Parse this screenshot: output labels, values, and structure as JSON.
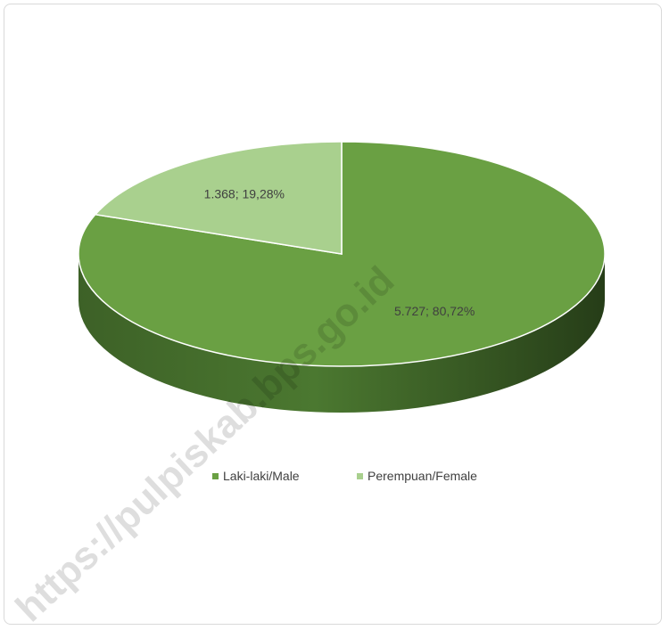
{
  "chart_data": {
    "type": "pie",
    "style": "3d",
    "slices": [
      {
        "name": "Laki-laki/Male",
        "value": 5727,
        "percent": 80.72,
        "label": "5.727; 80,72%",
        "color": "#6aa043"
      },
      {
        "name": "Perempuan/Female",
        "value": 1368,
        "percent": 19.28,
        "label": "1.368; 19,28%",
        "color": "#a9d08e"
      }
    ],
    "legend": {
      "position": "bottom"
    }
  },
  "legend": {
    "male_label": "Laki-laki/Male",
    "female_label": "Perempuan/Female"
  },
  "watermark": {
    "text": "https://pulpiskab.bps.go.id"
  },
  "colors": {
    "male": "#6aa043",
    "female": "#a9d08e",
    "male_side_dark": "#2e4a1d"
  }
}
